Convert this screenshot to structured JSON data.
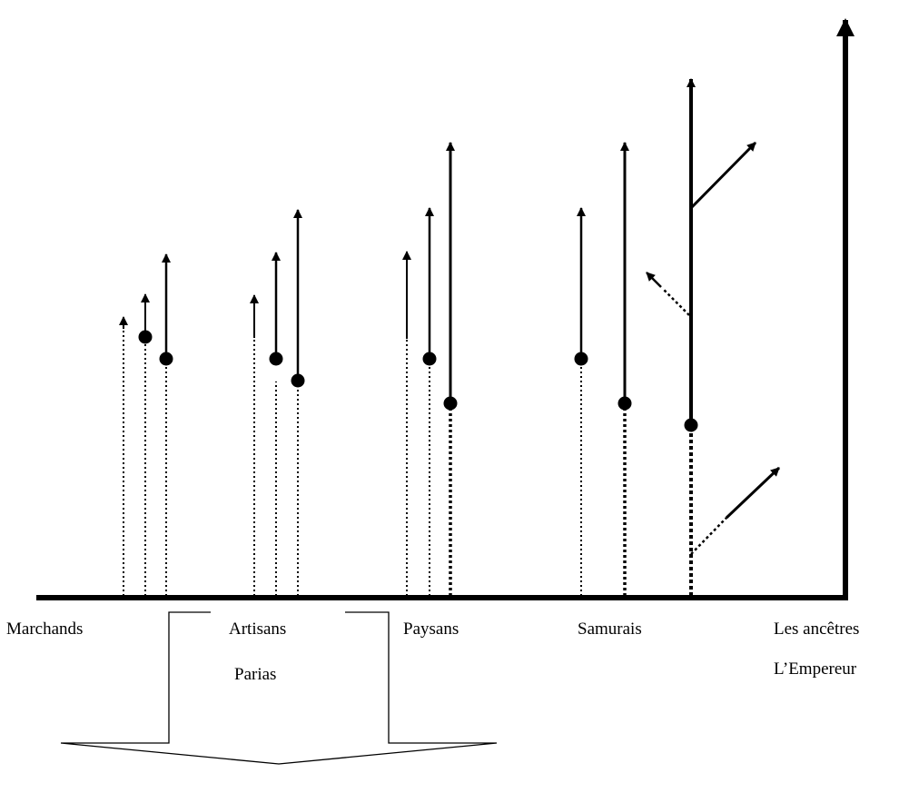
{
  "labels": {
    "marchands": "Marchands",
    "artisans": "Artisans",
    "paysans": "Paysans",
    "samurais": "Samurais",
    "ancetres": "Les ancêtres",
    "empereur": "L’Empereur",
    "parias": "Parias"
  },
  "colors": {
    "ink": "#000000",
    "paper": "#ffffff"
  }
}
